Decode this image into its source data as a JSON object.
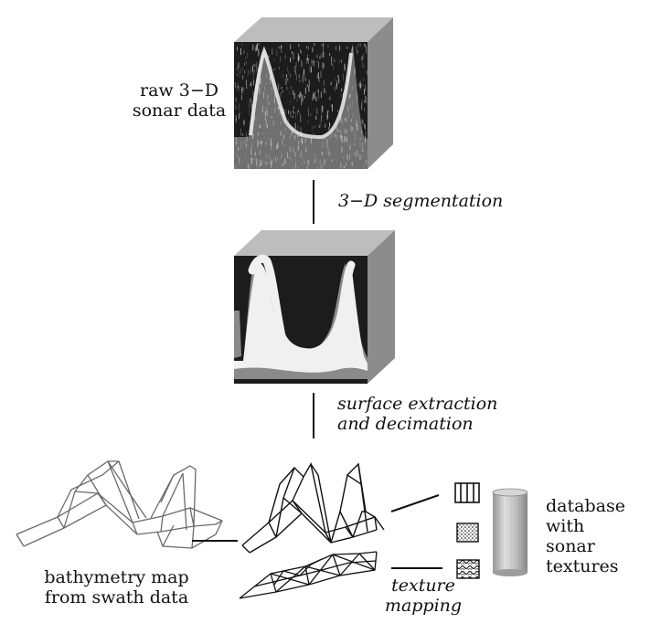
{
  "labels": {
    "raw_data_1": "raw 3−D",
    "raw_data_2": "sonar data",
    "segmentation": "3−D segmentation",
    "surface_1": "surface extraction",
    "surface_2": "and decimation",
    "bathymetry_1": "bathymetry map",
    "bathymetry_2": "from swath data",
    "texture_1": "texture",
    "texture_2": "mapping",
    "database_1": "database",
    "database_2": "with",
    "database_3": "sonar",
    "database_4": "textures"
  },
  "colors": {
    "background": "#ffffff",
    "line": "#111111",
    "cube_side": "#8c8c8c",
    "cube_top": "#bdbdbd",
    "sonar_dark": "#1c1c1c",
    "segment_white": "#f0f0f0",
    "segment_grey": "#8a8a8a"
  }
}
